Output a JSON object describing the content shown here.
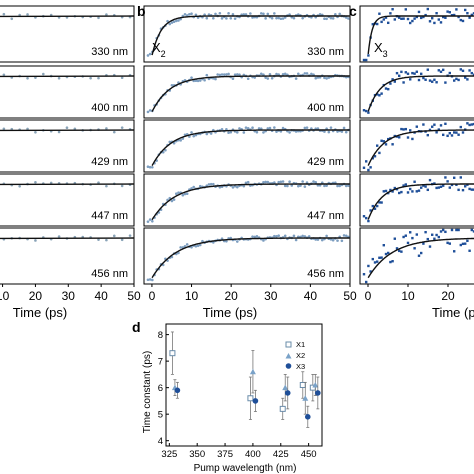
{
  "panels": [
    {
      "label": "",
      "species": "",
      "x_label": "Time (ps)",
      "x_ticks": [
        "10",
        "20",
        "30",
        "40",
        "50"
      ],
      "xlim": [
        8,
        50
      ],
      "tau_ps": [
        2.8,
        3.0,
        2.6,
        2.5,
        2.4
      ],
      "scatter": 0.05,
      "color": "#8aa4b8"
    },
    {
      "label": "b",
      "species": "X",
      "species_sub": "2",
      "x_label": "Time (ps)",
      "x_ticks": [
        "0",
        "10",
        "20",
        "30",
        "40",
        "50"
      ],
      "xlim": [
        -2,
        50
      ],
      "tau_ps": [
        2.3,
        4.5,
        4.8,
        5.6,
        6.0
      ],
      "scatter": 0.05,
      "color": "#7d9ec0"
    },
    {
      "label": "c",
      "species": "X",
      "species_sub": "3",
      "x_label": "Time (p",
      "x_ticks": [
        "0",
        "10",
        "20"
      ],
      "xlim": [
        -2,
        28
      ],
      "tau_ps": [
        1.0,
        3.0,
        4.0,
        3.5,
        6.0
      ],
      "scatter": 0.13,
      "color": "#1f4f99"
    }
  ],
  "wavelength_labels": [
    "330 nm",
    "400 nm",
    "429 nm",
    "447 nm",
    "456 nm"
  ],
  "chart_data": {
    "type": "scatter",
    "label": "d",
    "xlabel": "Pump wavelength (nm)",
    "ylabel": "Time constant (ps)",
    "x_ticks": [
      325,
      350,
      375,
      400,
      425,
      450
    ],
    "xlim": [
      322,
      462
    ],
    "y_ticks": [
      4,
      5,
      6,
      7,
      8
    ],
    "ylim": [
      3.8,
      8.4
    ],
    "series": [
      {
        "name": "X1",
        "marker": "square-open",
        "color": "#6a8caa",
        "x": [
          330,
          400,
          429,
          447,
          456
        ],
        "y": [
          7.3,
          5.6,
          5.2,
          6.1,
          6.0
        ],
        "err": [
          0.8,
          0.8,
          0.4,
          0.5,
          0.5
        ]
      },
      {
        "name": "X2",
        "marker": "triangle",
        "color": "#7aa2c8",
        "x": [
          330,
          400,
          429,
          447,
          456
        ],
        "y": [
          6.0,
          6.6,
          6.0,
          5.6,
          6.1
        ],
        "err": [
          0.3,
          0.8,
          0.5,
          0.6,
          0.4
        ]
      },
      {
        "name": "X3",
        "marker": "circle",
        "color": "#1f4f99",
        "x": [
          330,
          400,
          429,
          447,
          456
        ],
        "y": [
          5.9,
          5.5,
          5.8,
          4.9,
          5.8
        ],
        "err": [
          0.3,
          0.4,
          0.6,
          0.4,
          0.6
        ]
      }
    ]
  }
}
